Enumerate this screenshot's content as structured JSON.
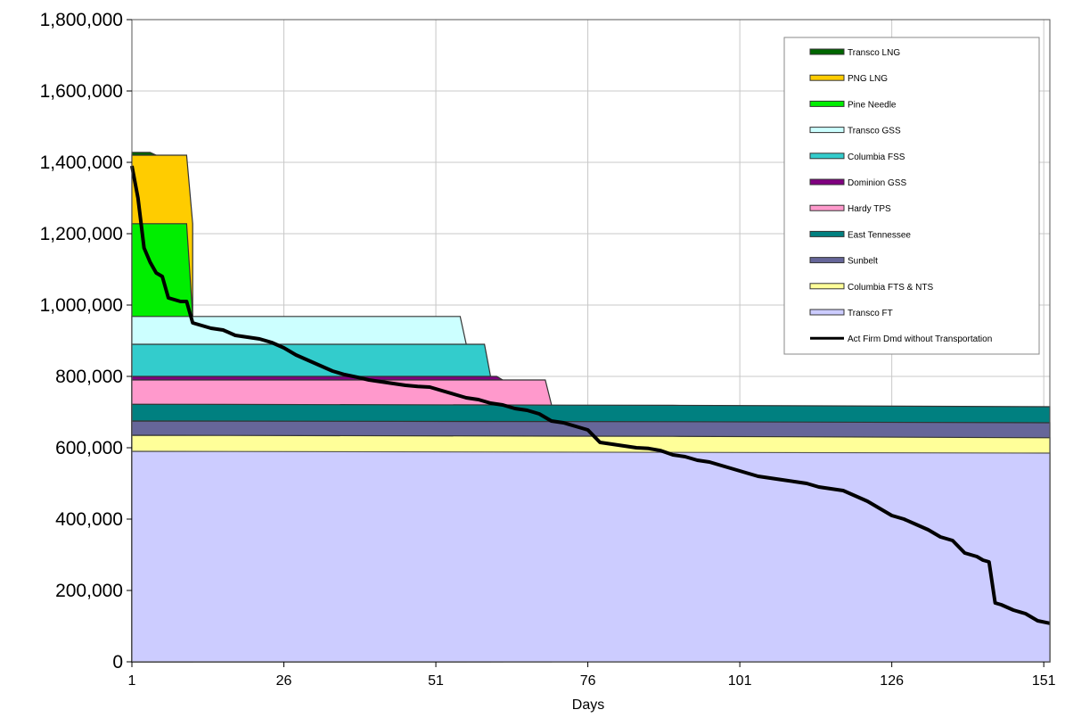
{
  "chart_data": {
    "type": "area",
    "xlabel": "Days",
    "ylabel": "",
    "title": "",
    "xlim": [
      1,
      152
    ],
    "ylim": [
      0,
      1800000
    ],
    "x_ticks": [
      1,
      26,
      51,
      76,
      101,
      126,
      151
    ],
    "x_tick_labels": [
      "1",
      "26",
      "51",
      "76",
      "101",
      "126",
      "151"
    ],
    "y_ticks": [
      0,
      200000,
      400000,
      600000,
      800000,
      1000000,
      1200000,
      1400000,
      1600000,
      1800000
    ],
    "y_tick_labels": [
      "0",
      "200,000",
      "400,000",
      "600,000",
      "800,000",
      "1,000,000",
      "1,200,000",
      "1,400,000",
      "1,600,000",
      "1,800,000"
    ],
    "grid": true,
    "legend_position": "top-right",
    "series": [
      {
        "name": "Transco FT",
        "color": "#ccccff",
        "stroke": "#555555",
        "points": [
          [
            1,
            590000
          ],
          [
            152,
            585000
          ]
        ]
      },
      {
        "name": "Columbia FTS & NTS",
        "color": "#ffff99",
        "stroke": "#333333",
        "points": [
          [
            1,
            635000
          ],
          [
            90,
            632000
          ],
          [
            152,
            628000
          ]
        ]
      },
      {
        "name": "Sunbelt",
        "color": "#666699",
        "stroke": "#333333",
        "points": [
          [
            1,
            675000
          ],
          [
            90,
            673000
          ],
          [
            152,
            670000
          ]
        ]
      },
      {
        "name": "East Tennessee",
        "color": "#008080",
        "stroke": "#333333",
        "points": [
          [
            1,
            722000
          ],
          [
            90,
            719000
          ],
          [
            152,
            715000
          ]
        ]
      },
      {
        "name": "Hardy TPS",
        "color": "#ff99cc",
        "stroke": "#333333",
        "points": [
          [
            1,
            790000
          ],
          [
            69,
            790000
          ],
          [
            70,
            722000
          ]
        ]
      },
      {
        "name": "Dominion GSS",
        "color": "#800080",
        "stroke": "#333333",
        "points": [
          [
            1,
            800000
          ],
          [
            61,
            800000
          ],
          [
            62,
            790000
          ]
        ]
      },
      {
        "name": "Columbia FSS",
        "color": "#33cccc",
        "stroke": "#333333",
        "points": [
          [
            1,
            890000
          ],
          [
            59,
            890000
          ],
          [
            60,
            800000
          ]
        ]
      },
      {
        "name": "Transco GSS",
        "color": "#ccffff",
        "stroke": "#333333",
        "points": [
          [
            1,
            968000
          ],
          [
            55,
            968000
          ],
          [
            56,
            890000
          ]
        ]
      },
      {
        "name": "Pine Needle",
        "color": "#00ee00",
        "stroke": "#333333",
        "points": [
          [
            1,
            1228000
          ],
          [
            10,
            1228000
          ],
          [
            11,
            968000
          ]
        ]
      },
      {
        "name": "PNG LNG",
        "color": "#ffcc00",
        "stroke": "#333333",
        "points": [
          [
            1,
            1420000
          ],
          [
            10,
            1420000
          ],
          [
            11,
            1228000
          ]
        ]
      },
      {
        "name": "Transco LNG",
        "color": "#006600",
        "stroke": "#333333",
        "points": [
          [
            1,
            1428000
          ],
          [
            4,
            1428000
          ],
          [
            5,
            1420000
          ]
        ]
      }
    ],
    "line": {
      "name": "Act Firm Dmd without Transportation",
      "color": "#000000",
      "x": [
        1,
        2,
        3,
        4,
        5,
        6,
        7,
        8,
        9,
        10,
        11,
        12,
        14,
        16,
        18,
        20,
        22,
        24,
        26,
        28,
        30,
        32,
        34,
        36,
        38,
        40,
        42,
        44,
        46,
        48,
        50,
        52,
        54,
        56,
        58,
        60,
        62,
        64,
        66,
        68,
        70,
        72,
        74,
        76,
        78,
        80,
        82,
        84,
        86,
        88,
        90,
        92,
        94,
        96,
        98,
        100,
        102,
        104,
        106,
        108,
        110,
        112,
        114,
        116,
        118,
        120,
        122,
        124,
        126,
        128,
        130,
        132,
        134,
        136,
        138,
        140,
        141,
        142,
        143,
        144,
        146,
        148,
        150,
        152
      ],
      "y": [
        1390000,
        1300000,
        1160000,
        1120000,
        1090000,
        1080000,
        1020000,
        1015000,
        1010000,
        1010000,
        950000,
        945000,
        935000,
        930000,
        915000,
        910000,
        905000,
        895000,
        880000,
        860000,
        845000,
        830000,
        815000,
        805000,
        798000,
        790000,
        785000,
        780000,
        775000,
        772000,
        770000,
        760000,
        750000,
        740000,
        735000,
        725000,
        720000,
        710000,
        705000,
        695000,
        675000,
        670000,
        660000,
        650000,
        615000,
        610000,
        605000,
        600000,
        598000,
        592000,
        580000,
        575000,
        565000,
        560000,
        550000,
        540000,
        530000,
        520000,
        515000,
        510000,
        505000,
        500000,
        490000,
        485000,
        480000,
        465000,
        450000,
        430000,
        410000,
        400000,
        385000,
        370000,
        350000,
        340000,
        305000,
        295000,
        285000,
        280000,
        165000,
        160000,
        145000,
        135000,
        115000,
        108000
      ]
    }
  }
}
